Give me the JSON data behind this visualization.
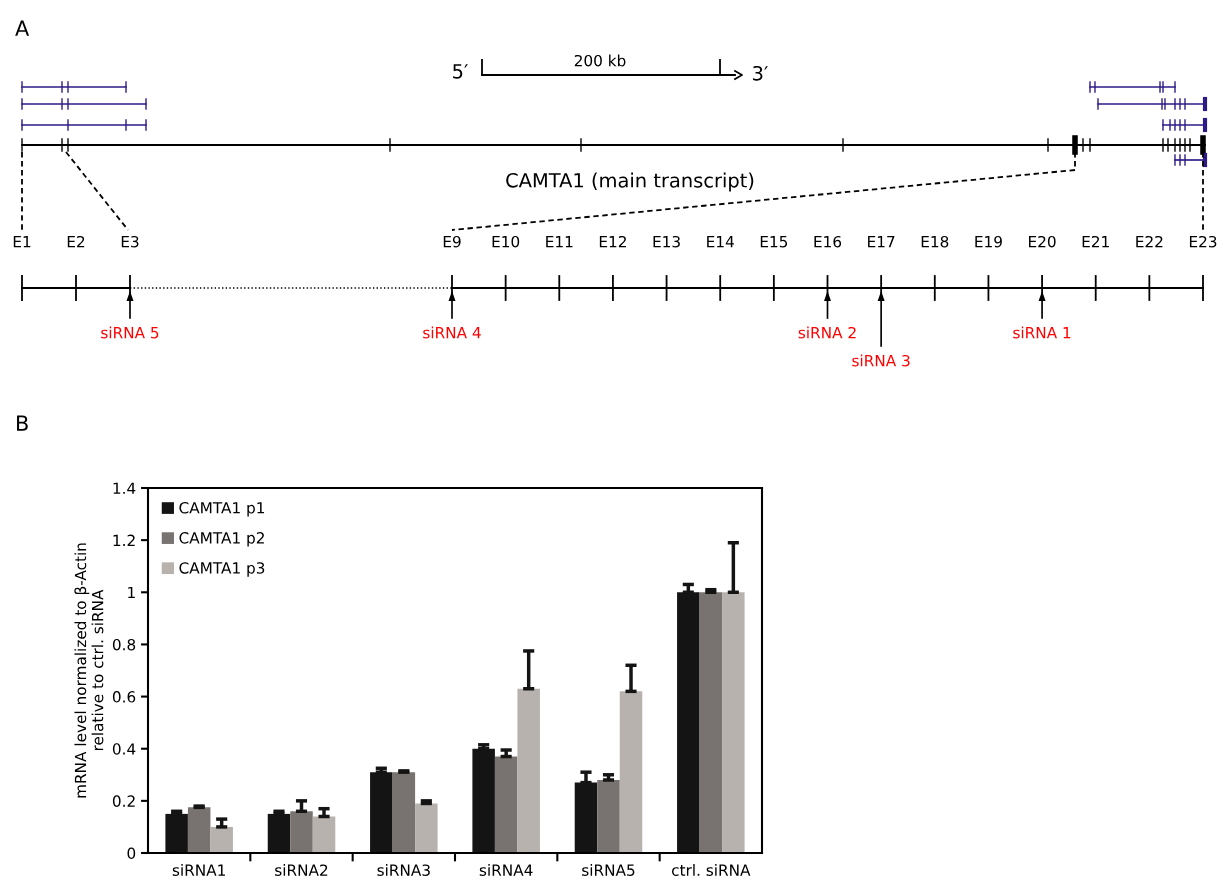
{
  "chart_data": [
    {
      "type": "other",
      "title": "A",
      "annotations": [
        "5′",
        "200 kb",
        "3′",
        "CAMTA1 (main transcript)",
        "E1",
        "E2",
        "E3",
        "E9",
        "E10",
        "E11",
        "E12",
        "E13",
        "E14",
        "E15",
        "E16",
        "E17",
        "E18",
        "E19",
        "E20",
        "E21",
        "E22",
        "E23",
        "siRNA 5",
        "siRNA 4",
        "siRNA 2",
        "siRNA 3",
        "siRNA 1"
      ]
    },
    {
      "type": "bar",
      "title": "B",
      "ylabel": "mRNA level normalized to β-Actin\nrelative to ctrl. siRNA",
      "categories": [
        "siRNA1",
        "siRNA2",
        "siRNA3",
        "siRNA4",
        "siRNA5",
        "ctrl. siRNA"
      ],
      "series": [
        {
          "name": "CAMTA1 p1",
          "color": "#141414",
          "values": [
            0.15,
            0.15,
            0.31,
            0.4,
            0.27,
            1.0
          ],
          "errors": [
            [
              0.15,
              0.16
            ],
            [
              0.15,
              0.16
            ],
            [
              0.31,
              0.325
            ],
            [
              0.4,
              0.415
            ],
            [
              0.27,
              0.31
            ],
            [
              1.0,
              1.03
            ]
          ]
        },
        {
          "name": "CAMTA1 p2",
          "color": "#787370",
          "values": [
            0.175,
            0.16,
            0.31,
            0.37,
            0.28,
            1.0
          ],
          "errors": [
            [
              0.175,
              0.18
            ],
            [
              0.16,
              0.2
            ],
            [
              0.31,
              0.315
            ],
            [
              0.37,
              0.395
            ],
            [
              0.28,
              0.3
            ],
            [
              1.0,
              1.01
            ]
          ]
        },
        {
          "name": "CAMTA1 p3",
          "color": "#b8b2ae",
          "values": [
            0.1,
            0.14,
            0.19,
            0.63,
            0.62,
            1.0
          ],
          "errors": [
            [
              0.1,
              0.13
            ],
            [
              0.14,
              0.17
            ],
            [
              0.19,
              0.2
            ],
            [
              0.63,
              0.775
            ],
            [
              0.62,
              0.72
            ],
            [
              1.0,
              1.19
            ]
          ]
        }
      ],
      "ylim": [
        0,
        1.4
      ],
      "yticks": [
        0,
        0.2,
        0.4,
        0.6,
        0.8,
        1,
        1.2,
        1.4
      ],
      "legend": "top left",
      "grid": false
    }
  ]
}
